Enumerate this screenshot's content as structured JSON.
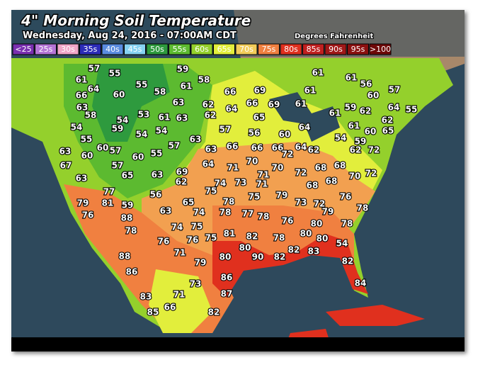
{
  "title": "4\" Morning Soil Temperature",
  "subtitle": "Wednesday, Aug 24, 2016 - 07:00AM CDT",
  "units_note": "Degrees Fahrenheit",
  "legend": [
    {
      "label": "<25",
      "color": "#7a2fb0"
    },
    {
      "label": "25s",
      "color": "#b474d6"
    },
    {
      "label": "30s",
      "color": "#f0a6c8"
    },
    {
      "label": "35s",
      "color": "#2c2cb8"
    },
    {
      "label": "40s",
      "color": "#5a8ce0"
    },
    {
      "label": "45s",
      "color": "#86d2f2"
    },
    {
      "label": "50s",
      "color": "#2e9a3e"
    },
    {
      "label": "55s",
      "color": "#5cba30"
    },
    {
      "label": "60s",
      "color": "#94d02c"
    },
    {
      "label": "65s",
      "color": "#e2ee3c"
    },
    {
      "label": "70s",
      "color": "#f2cc5a"
    },
    {
      "label": "75s",
      "color": "#f08040"
    },
    {
      "label": "80s",
      "color": "#e0301e"
    },
    {
      "label": "85s",
      "color": "#c02020"
    },
    {
      "label": "90s",
      "color": "#a01818"
    },
    {
      "label": "95s",
      "color": "#8c1010"
    },
    {
      "label": ">100",
      "color": "#6e0808"
    }
  ],
  "readings": [
    57,
    55,
    59,
    61,
    61,
    61,
    64,
    55,
    58,
    56,
    57,
    61,
    58,
    66,
    69,
    61,
    60,
    66,
    60,
    63,
    62,
    64,
    66,
    69,
    61,
    59,
    62,
    64,
    55,
    63,
    58,
    54,
    53,
    61,
    63,
    62,
    65,
    61,
    62,
    54,
    59,
    54,
    54,
    57,
    56,
    60,
    64,
    61,
    60,
    65,
    55,
    60,
    57,
    60,
    55,
    57,
    63,
    63,
    66,
    66,
    66,
    72,
    64,
    62,
    54,
    59,
    62,
    72,
    63,
    60,
    67,
    57,
    65,
    63,
    69,
    64,
    71,
    70,
    71,
    70,
    72,
    68,
    68,
    70,
    72,
    63,
    62,
    75,
    74,
    73,
    71,
    68,
    68,
    76,
    77,
    56,
    75,
    79,
    73,
    72,
    79,
    81,
    65,
    78,
    79,
    78,
    76,
    59,
    88,
    63,
    74,
    77,
    78,
    78,
    76,
    80,
    78,
    78,
    74,
    75,
    81,
    82,
    78,
    80,
    80,
    76,
    76,
    75,
    80,
    54,
    88,
    71,
    80,
    90,
    82,
    82,
    83,
    79,
    82,
    86,
    73,
    86,
    84,
    71,
    87,
    83,
    66,
    85,
    82
  ]
}
